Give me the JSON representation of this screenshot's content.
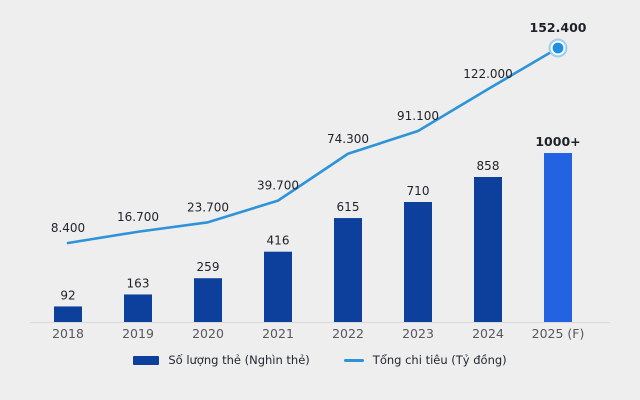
{
  "chart_data": {
    "type": "bar+line",
    "title": "",
    "categories": [
      "2018",
      "2019",
      "2020",
      "2021",
      "2022",
      "2023",
      "2024",
      "2025 (F)"
    ],
    "series": [
      {
        "name": "Số lượng thẻ (Nghìn thẻ)",
        "type": "bar",
        "values": [
          92,
          163,
          259,
          416,
          615,
          710,
          858,
          1000
        ],
        "labels": [
          "92",
          "163",
          "259",
          "416",
          "615",
          "710",
          "858",
          "1000+"
        ]
      },
      {
        "name": "Tổng chi tiêu (Tỷ đồng)",
        "type": "line",
        "values": [
          8400,
          16700,
          23700,
          39700,
          74300,
          91100,
          122000,
          152400
        ],
        "labels": [
          "8.400",
          "16.700",
          "23.700",
          "39.700",
          "74.300",
          "91.100",
          "122.000",
          "152.400"
        ]
      }
    ],
    "highlight_index": 7,
    "ylim_bar": [
      0,
      1000
    ],
    "ylim_line": [
      8400,
      152400
    ],
    "grid": false,
    "legend_position": "bottom",
    "colors": {
      "background": "#eeeeef",
      "bar": "#0d3f9c",
      "bar_highlight": "#2362e1",
      "bar_label_highlight": "#1d56cc",
      "line": "#2e93d8",
      "line_label_highlight": "#0a85dd",
      "marker_core": "#1e90e0",
      "marker_halo": "#9fd0f0",
      "label_text": "#1f2329",
      "axis_text": "#55585e",
      "baseline": "#d9d9db"
    }
  }
}
